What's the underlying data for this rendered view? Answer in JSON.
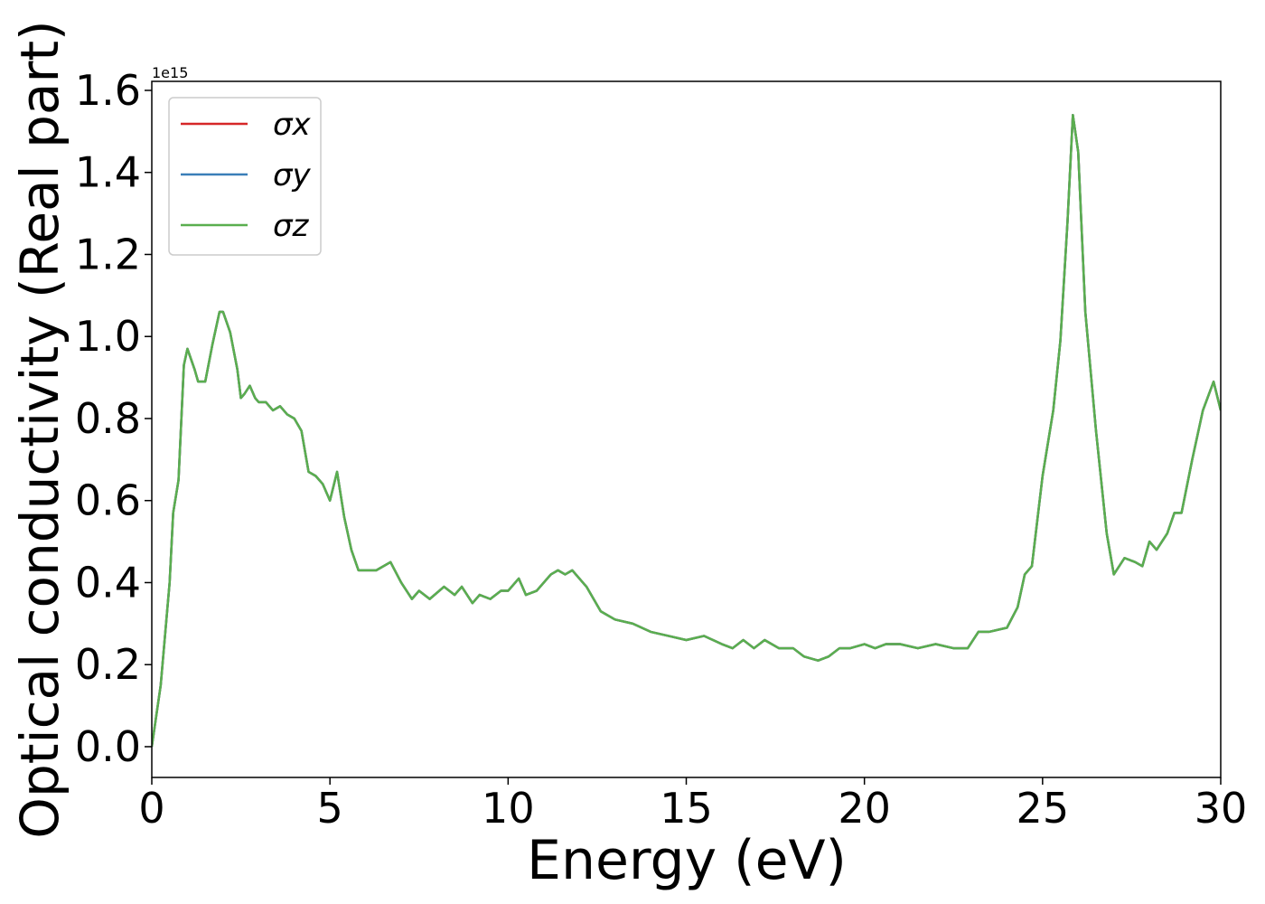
{
  "chart_data": {
    "type": "line",
    "xlabel": "Energy (eV)",
    "ylabel": "Optical conductivity (Real part)",
    "y_offset_label": "1e15",
    "x": [
      0,
      0.25,
      0.5,
      0.6,
      0.75,
      0.9,
      1.0,
      1.2,
      1.3,
      1.5,
      1.7,
      1.9,
      2.0,
      2.2,
      2.4,
      2.5,
      2.6,
      2.75,
      2.9,
      3.0,
      3.2,
      3.4,
      3.6,
      3.8,
      4.0,
      4.2,
      4.4,
      4.6,
      4.8,
      5.0,
      5.2,
      5.4,
      5.6,
      5.8,
      6.0,
      6.3,
      6.7,
      7.0,
      7.3,
      7.5,
      7.8,
      8.2,
      8.5,
      8.7,
      9.0,
      9.2,
      9.5,
      9.8,
      10.0,
      10.3,
      10.5,
      10.8,
      11.2,
      11.4,
      11.6,
      11.8,
      12.2,
      12.6,
      13.0,
      13.5,
      14.0,
      14.5,
      15.0,
      15.5,
      16.0,
      16.3,
      16.6,
      16.9,
      17.2,
      17.6,
      18.0,
      18.3,
      18.7,
      19.0,
      19.3,
      19.6,
      20.0,
      20.3,
      20.6,
      21.0,
      21.5,
      22.0,
      22.5,
      22.9,
      23.2,
      23.5,
      24.0,
      24.3,
      24.5,
      24.7,
      25.0,
      25.3,
      25.5,
      25.7,
      25.85,
      26.0,
      26.2,
      26.5,
      26.8,
      27.0,
      27.3,
      27.6,
      27.8,
      28.0,
      28.2,
      28.5,
      28.7,
      28.9,
      29.2,
      29.5,
      29.8,
      30.0
    ],
    "series": [
      {
        "name": "σx",
        "color": "#d62728",
        "values": [
          0.0,
          0.15,
          0.4,
          0.57,
          0.65,
          0.93,
          0.97,
          0.92,
          0.89,
          0.89,
          0.98,
          1.06,
          1.06,
          1.01,
          0.92,
          0.85,
          0.86,
          0.88,
          0.85,
          0.84,
          0.84,
          0.82,
          0.83,
          0.81,
          0.8,
          0.77,
          0.67,
          0.66,
          0.64,
          0.6,
          0.67,
          0.56,
          0.48,
          0.43,
          0.43,
          0.43,
          0.45,
          0.4,
          0.36,
          0.38,
          0.36,
          0.39,
          0.37,
          0.39,
          0.35,
          0.37,
          0.36,
          0.38,
          0.38,
          0.41,
          0.37,
          0.38,
          0.42,
          0.43,
          0.42,
          0.43,
          0.39,
          0.33,
          0.31,
          0.3,
          0.28,
          0.27,
          0.26,
          0.27,
          0.25,
          0.24,
          0.26,
          0.24,
          0.26,
          0.24,
          0.24,
          0.22,
          0.21,
          0.22,
          0.24,
          0.24,
          0.25,
          0.24,
          0.25,
          0.25,
          0.24,
          0.25,
          0.24,
          0.24,
          0.28,
          0.28,
          0.29,
          0.34,
          0.42,
          0.44,
          0.66,
          0.82,
          0.99,
          1.28,
          1.54,
          1.45,
          1.06,
          0.77,
          0.52,
          0.42,
          0.46,
          0.45,
          0.44,
          0.5,
          0.48,
          0.52,
          0.57,
          0.57,
          0.7,
          0.82,
          0.89,
          0.82
        ]
      },
      {
        "name": "σy",
        "color": "#3a7fb8",
        "values": [
          0.0,
          0.15,
          0.4,
          0.57,
          0.65,
          0.93,
          0.97,
          0.92,
          0.89,
          0.89,
          0.98,
          1.06,
          1.06,
          1.01,
          0.92,
          0.85,
          0.86,
          0.88,
          0.85,
          0.84,
          0.84,
          0.82,
          0.83,
          0.81,
          0.8,
          0.77,
          0.67,
          0.66,
          0.64,
          0.6,
          0.67,
          0.56,
          0.48,
          0.43,
          0.43,
          0.43,
          0.45,
          0.4,
          0.36,
          0.38,
          0.36,
          0.39,
          0.37,
          0.39,
          0.35,
          0.37,
          0.36,
          0.38,
          0.38,
          0.41,
          0.37,
          0.38,
          0.42,
          0.43,
          0.42,
          0.43,
          0.39,
          0.33,
          0.31,
          0.3,
          0.28,
          0.27,
          0.26,
          0.27,
          0.25,
          0.24,
          0.26,
          0.24,
          0.26,
          0.24,
          0.24,
          0.22,
          0.21,
          0.22,
          0.24,
          0.24,
          0.25,
          0.24,
          0.25,
          0.25,
          0.24,
          0.25,
          0.24,
          0.24,
          0.28,
          0.28,
          0.29,
          0.34,
          0.42,
          0.44,
          0.66,
          0.82,
          0.99,
          1.28,
          1.54,
          1.45,
          1.06,
          0.77,
          0.52,
          0.42,
          0.46,
          0.45,
          0.44,
          0.5,
          0.48,
          0.52,
          0.57,
          0.57,
          0.7,
          0.82,
          0.89,
          0.82
        ]
      },
      {
        "name": "σz",
        "color": "#5aae4f",
        "values": [
          0.0,
          0.15,
          0.4,
          0.57,
          0.65,
          0.93,
          0.97,
          0.92,
          0.89,
          0.89,
          0.98,
          1.06,
          1.06,
          1.01,
          0.92,
          0.85,
          0.86,
          0.88,
          0.85,
          0.84,
          0.84,
          0.82,
          0.83,
          0.81,
          0.8,
          0.77,
          0.67,
          0.66,
          0.64,
          0.6,
          0.67,
          0.56,
          0.48,
          0.43,
          0.43,
          0.43,
          0.45,
          0.4,
          0.36,
          0.38,
          0.36,
          0.39,
          0.37,
          0.39,
          0.35,
          0.37,
          0.36,
          0.38,
          0.38,
          0.41,
          0.37,
          0.38,
          0.42,
          0.43,
          0.42,
          0.43,
          0.39,
          0.33,
          0.31,
          0.3,
          0.28,
          0.27,
          0.26,
          0.27,
          0.25,
          0.24,
          0.26,
          0.24,
          0.26,
          0.24,
          0.24,
          0.22,
          0.21,
          0.22,
          0.24,
          0.24,
          0.25,
          0.24,
          0.25,
          0.25,
          0.24,
          0.25,
          0.24,
          0.24,
          0.28,
          0.28,
          0.29,
          0.34,
          0.42,
          0.44,
          0.66,
          0.82,
          0.99,
          1.28,
          1.54,
          1.45,
          1.06,
          0.77,
          0.52,
          0.42,
          0.46,
          0.45,
          0.44,
          0.5,
          0.48,
          0.52,
          0.57,
          0.57,
          0.7,
          0.82,
          0.89,
          0.82
        ]
      }
    ],
    "xlim": [
      0,
      30
    ],
    "xticks": [
      0,
      5,
      10,
      15,
      20,
      25,
      30
    ],
    "ylim": [
      -0.075,
      1.622
    ],
    "yticks": [
      {
        "value": 0,
        "label": "0.0"
      },
      0.2,
      0.4,
      0.6,
      0.8,
      {
        "value": 1,
        "label": "1.0"
      },
      1.2,
      1.4,
      1.6
    ],
    "legend": "upper left",
    "grid": false
  }
}
